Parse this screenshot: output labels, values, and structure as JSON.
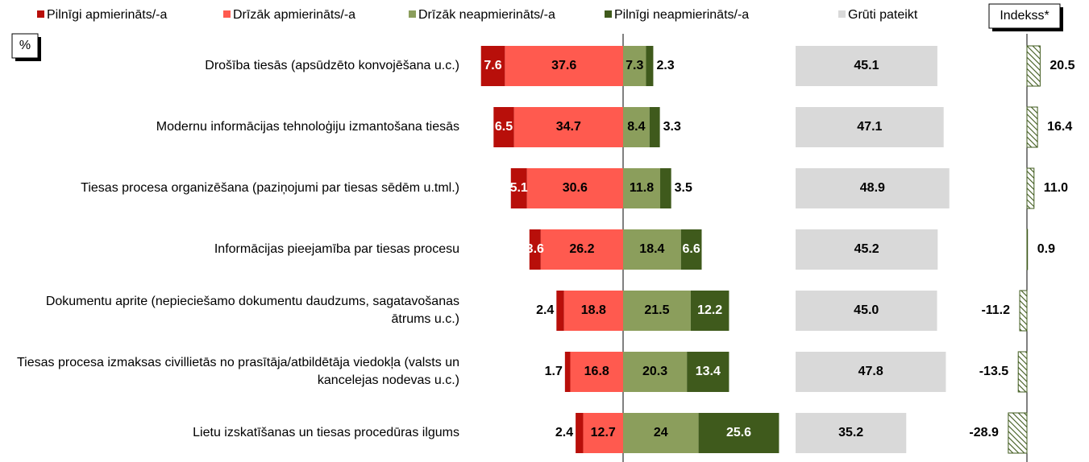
{
  "chart_data": {
    "type": "diverging_bar",
    "unit_label": "%",
    "categories": [
      "Drošība tiesās (apsūdzēto konvojēšana u.c.)",
      "Modernu informācijas tehnoloģiju izmantošana tiesās",
      "Tiesas procesa organizēšana (paziņojumi par tiesas sēdēm u.tml.)",
      "Informācijas pieejamība par tiesas procesu",
      "Dokumentu aprite (nepieciešamo dokumentu daudzums, sagatavošanas ātrums u.c.)",
      "Tiesas procesa izmaksas civillietās no prasītāja/atbildētāja viedokļa (valsts un kancelejas nodevas u.c.)",
      "Lietu izskatīšanas un tiesas procedūras ilgums"
    ],
    "series": [
      {
        "name": "Pilnīgi apmierināts/-a",
        "color": "#b80f0a",
        "values": [
          7.6,
          6.5,
          5.1,
          3.6,
          2.4,
          1.7,
          2.4
        ]
      },
      {
        "name": "Drīzāk apmierināts/-a",
        "color": "#ff5a4f",
        "values": [
          37.6,
          34.7,
          30.6,
          26.2,
          18.8,
          16.8,
          12.7
        ]
      },
      {
        "name": "Drīzāk neapmierināts/-a",
        "color": "#8b9e5c",
        "values": [
          7.3,
          8.4,
          11.8,
          18.4,
          21.5,
          20.3,
          24.0
        ]
      },
      {
        "name": "Pilnīgi neapmierināts/-a",
        "color": "#3f5a1c",
        "values": [
          2.3,
          3.3,
          3.5,
          6.6,
          12.2,
          13.4,
          25.6
        ]
      },
      {
        "name": "Grūti pateikt",
        "color": "#d9d9d9",
        "values": [
          45.1,
          47.1,
          48.9,
          45.2,
          45.0,
          47.8,
          35.2
        ],
        "value_labels": [
          "45.1",
          "47.1",
          "48.9",
          "45.2",
          "45.0",
          "47.8",
          "35.2"
        ]
      }
    ],
    "index_series": {
      "name": "Indekss*",
      "color": "#3f5a1c",
      "values": [
        20.5,
        16.4,
        11.0,
        0.9,
        -11.2,
        -13.5,
        -28.9
      ],
      "value_labels": [
        "20.5",
        "16.4",
        "11.0",
        "0.9",
        "-11.2",
        "-13.5",
        "-28.9"
      ]
    }
  }
}
